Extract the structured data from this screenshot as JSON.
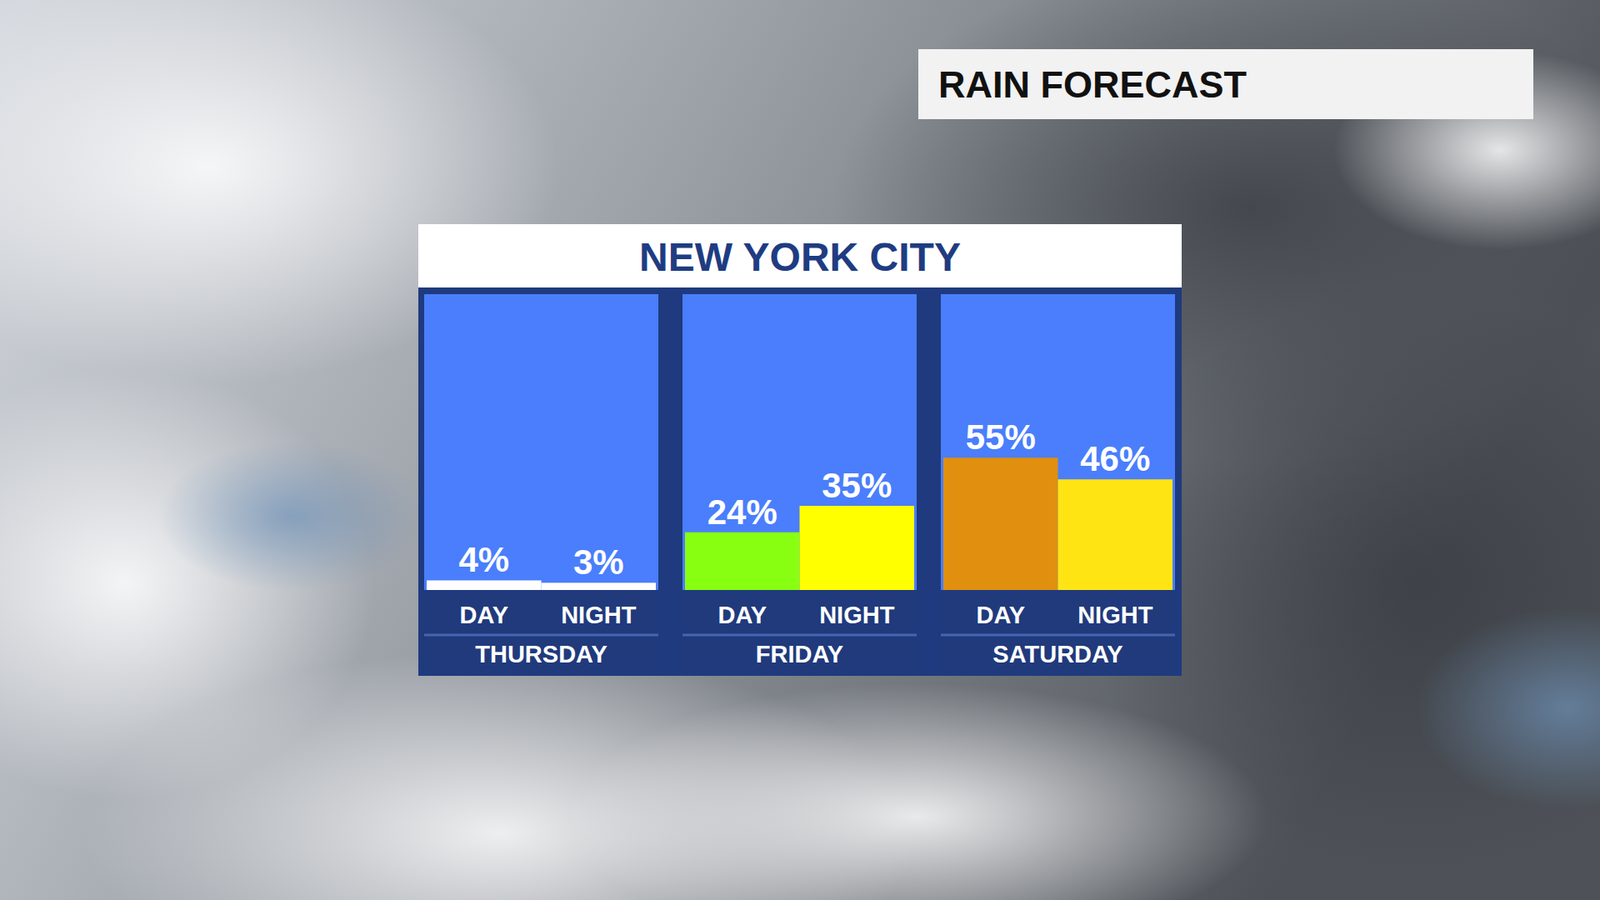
{
  "chart_data": {
    "type": "bar",
    "title": "NEW YORK CITY",
    "subtitle": "RAIN FORECAST",
    "categories": [
      "DAY",
      "NIGHT",
      "DAY",
      "NIGHT",
      "DAY",
      "NIGHT"
    ],
    "groups": [
      "THURSDAY",
      "FRIDAY",
      "SATURDAY"
    ],
    "values": [
      4,
      3,
      24,
      35,
      55,
      46
    ],
    "value_labels": [
      "4%",
      "3%",
      "24%",
      "35%",
      "55%",
      "46%"
    ],
    "colors": [
      "#ffffff",
      "#ffffff",
      "#88ff11",
      "#ffff00",
      "#e0900e",
      "#ffe414"
    ],
    "ylim": [
      0,
      123
    ],
    "data_labels": true,
    "tick_labels": "x",
    "grid": false
  }
}
